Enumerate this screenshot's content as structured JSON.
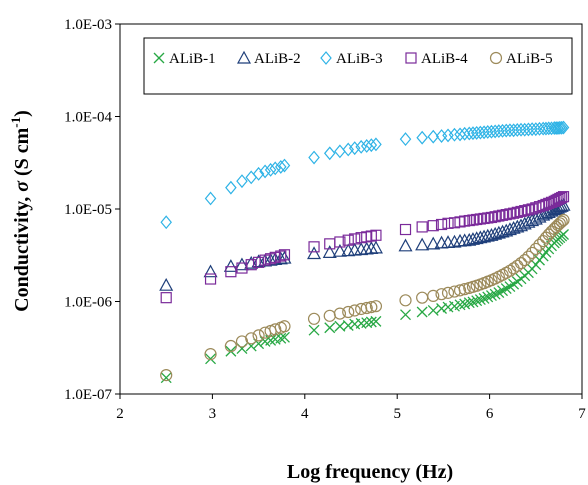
{
  "chart_data": {
    "type": "scatter",
    "xlabel": "Log frequency (Hz)",
    "ylabel_main": "Conductivity, ",
    "ylabel_sigma": "σ",
    "ylabel_unit": " (S cm",
    "ylabel_exp": "-1",
    "ylabel_close": ")",
    "xlim": [
      2,
      7
    ],
    "ylim": [
      1e-07,
      0.001
    ],
    "yscale": "log",
    "grid": false,
    "legend_position": "top",
    "x_ticks": [
      "2",
      "3",
      "4",
      "5",
      "6",
      "7"
    ],
    "y_ticks": [
      "1.0E-07",
      "1.0E-06",
      "1.0E-05",
      "1.0E-04",
      "1.0E-03"
    ],
    "x_freq": [
      2.5,
      2.98,
      3.2,
      3.32,
      3.42,
      3.5,
      3.57,
      3.63,
      3.68,
      3.74,
      3.78,
      4.1,
      4.27,
      4.38,
      4.47,
      4.54,
      4.61,
      4.67,
      4.72,
      4.77,
      5.09,
      5.27,
      5.39,
      5.48,
      5.55,
      5.62,
      5.68,
      5.73,
      5.78,
      5.82,
      5.86,
      5.9,
      5.94,
      5.98,
      6.02,
      6.06,
      6.1,
      6.14,
      6.18,
      6.22,
      6.26,
      6.3,
      6.34,
      6.38,
      6.42,
      6.46,
      6.5,
      6.54,
      6.58,
      6.61,
      6.64,
      6.67,
      6.7,
      6.72,
      6.74,
      6.76,
      6.78,
      6.8
    ],
    "series": [
      {
        "name": "ALiB-1",
        "marker": "x",
        "color": "#27a844",
        "values": [
          1.5e-07,
          2.4e-07,
          2.9e-07,
          3.1e-07,
          3.3e-07,
          3.5e-07,
          3.7e-07,
          3.8e-07,
          3.9e-07,
          4e-07,
          4.1e-07,
          4.9e-07,
          5.2e-07,
          5.4e-07,
          5.5e-07,
          5.7e-07,
          5.8e-07,
          5.9e-07,
          6e-07,
          6.1e-07,
          7.2e-07,
          7.7e-07,
          8e-07,
          8.4e-07,
          8.7e-07,
          8.9e-07,
          9.2e-07,
          9.4e-07,
          9.7e-07,
          9.9e-07,
          1.02e-06,
          1.05e-06,
          1.08e-06,
          1.12e-06,
          1.16e-06,
          1.2e-06,
          1.25e-06,
          1.31e-06,
          1.38e-06,
          1.45e-06,
          1.54e-06,
          1.64e-06,
          1.76e-06,
          1.9e-06,
          2.05e-06,
          2.25e-06,
          2.5e-06,
          2.8e-06,
          3.1e-06,
          3.4e-06,
          3.7e-06,
          4e-06,
          4.3e-06,
          4.5e-06,
          4.7e-06,
          4.9e-06,
          5.1e-06,
          5.3e-06
        ]
      },
      {
        "name": "ALiB-2",
        "marker": "triangle",
        "color": "#1f3f7a",
        "values": [
          1.5e-06,
          2.1e-06,
          2.4e-06,
          2.5e-06,
          2.6e-06,
          2.7e-06,
          2.75e-06,
          2.8e-06,
          2.85e-06,
          2.9e-06,
          2.95e-06,
          3.3e-06,
          3.4e-06,
          3.5e-06,
          3.55e-06,
          3.6e-06,
          3.65e-06,
          3.7e-06,
          3.75e-06,
          3.8e-06,
          4e-06,
          4.1e-06,
          4.2e-06,
          4.3e-06,
          4.35e-06,
          4.4e-06,
          4.5e-06,
          4.55e-06,
          4.6e-06,
          4.7e-06,
          4.8e-06,
          4.9e-06,
          5e-06,
          5.1e-06,
          5.2e-06,
          5.35e-06,
          5.5e-06,
          5.65e-06,
          5.8e-06,
          6e-06,
          6.2e-06,
          6.4e-06,
          6.6e-06,
          6.9e-06,
          7.2e-06,
          7.5e-06,
          7.8e-06,
          8.2e-06,
          8.6e-06,
          8.9e-06,
          9.2e-06,
          9.5e-06,
          9.8e-06,
          1e-05,
          1.02e-05,
          1.05e-05,
          1.07e-05,
          1.1e-05
        ]
      },
      {
        "name": "ALiB-3",
        "marker": "diamond",
        "color": "#2fb3e6",
        "values": [
          7.2e-06,
          1.3e-05,
          1.7e-05,
          2e-05,
          2.2e-05,
          2.4e-05,
          2.55e-05,
          2.65e-05,
          2.75e-05,
          2.85e-05,
          2.95e-05,
          3.6e-05,
          4e-05,
          4.2e-05,
          4.4e-05,
          4.55e-05,
          4.7e-05,
          4.8e-05,
          4.9e-05,
          5e-05,
          5.7e-05,
          5.9e-05,
          6.05e-05,
          6.15e-05,
          6.25e-05,
          6.35e-05,
          6.4e-05,
          6.5e-05,
          6.55e-05,
          6.6e-05,
          6.65e-05,
          6.7e-05,
          6.75e-05,
          6.8e-05,
          6.85e-05,
          6.9e-05,
          6.95e-05,
          7e-05,
          7.05e-05,
          7.1e-05,
          7.1e-05,
          7.15e-05,
          7.2e-05,
          7.2e-05,
          7.25e-05,
          7.3e-05,
          7.3e-05,
          7.35e-05,
          7.4e-05,
          7.4e-05,
          7.45e-05,
          7.45e-05,
          7.5e-05,
          7.5e-05,
          7.5e-05,
          7.55e-05,
          7.55e-05,
          7.6e-05
        ]
      },
      {
        "name": "ALiB-4",
        "marker": "square",
        "color": "#7a2a9a",
        "values": [
          1.1e-06,
          1.75e-06,
          2.1e-06,
          2.3e-06,
          2.5e-06,
          2.65e-06,
          2.8e-06,
          2.9e-06,
          3e-06,
          3.1e-06,
          3.2e-06,
          3.9e-06,
          4.2e-06,
          4.4e-06,
          4.6e-06,
          4.75e-06,
          4.9e-06,
          5e-06,
          5.1e-06,
          5.2e-06,
          6e-06,
          6.4e-06,
          6.6e-06,
          6.8e-06,
          7e-06,
          7.1e-06,
          7.25e-06,
          7.4e-06,
          7.5e-06,
          7.6e-06,
          7.7e-06,
          7.8e-06,
          7.9e-06,
          8e-06,
          8.1e-06,
          8.25e-06,
          8.4e-06,
          8.55e-06,
          8.7e-06,
          8.85e-06,
          9e-06,
          9.2e-06,
          9.4e-06,
          9.6e-06,
          9.8e-06,
          1e-05,
          1.03e-05,
          1.06e-05,
          1.09e-05,
          1.12e-05,
          1.15e-05,
          1.18e-05,
          1.21e-05,
          1.24e-05,
          1.27e-05,
          1.3e-05,
          1.33e-05,
          1.36e-05
        ]
      },
      {
        "name": "ALiB-5",
        "marker": "circle",
        "color": "#9c8a5a",
        "values": [
          1.6e-07,
          2.7e-07,
          3.3e-07,
          3.7e-07,
          4e-07,
          4.3e-07,
          4.6e-07,
          4.8e-07,
          5e-07,
          5.2e-07,
          5.4e-07,
          6.5e-07,
          7e-07,
          7.4e-07,
          7.7e-07,
          8e-07,
          8.3e-07,
          8.5e-07,
          8.7e-07,
          8.9e-07,
          1.03e-06,
          1.1e-06,
          1.15e-06,
          1.2e-06,
          1.24e-06,
          1.28e-06,
          1.32e-06,
          1.36e-06,
          1.4e-06,
          1.44e-06,
          1.48e-06,
          1.53e-06,
          1.58e-06,
          1.64e-06,
          1.7e-06,
          1.77e-06,
          1.85e-06,
          1.94e-06,
          2.04e-06,
          2.15e-06,
          2.28e-06,
          2.43e-06,
          2.6e-06,
          2.8e-06,
          3.05e-06,
          3.35e-06,
          3.7e-06,
          4.1e-06,
          4.5e-06,
          4.9e-06,
          5.3e-06,
          5.7e-06,
          6.1e-06,
          6.4e-06,
          6.7e-06,
          7e-06,
          7.3e-06,
          7.6e-06
        ]
      }
    ]
  }
}
